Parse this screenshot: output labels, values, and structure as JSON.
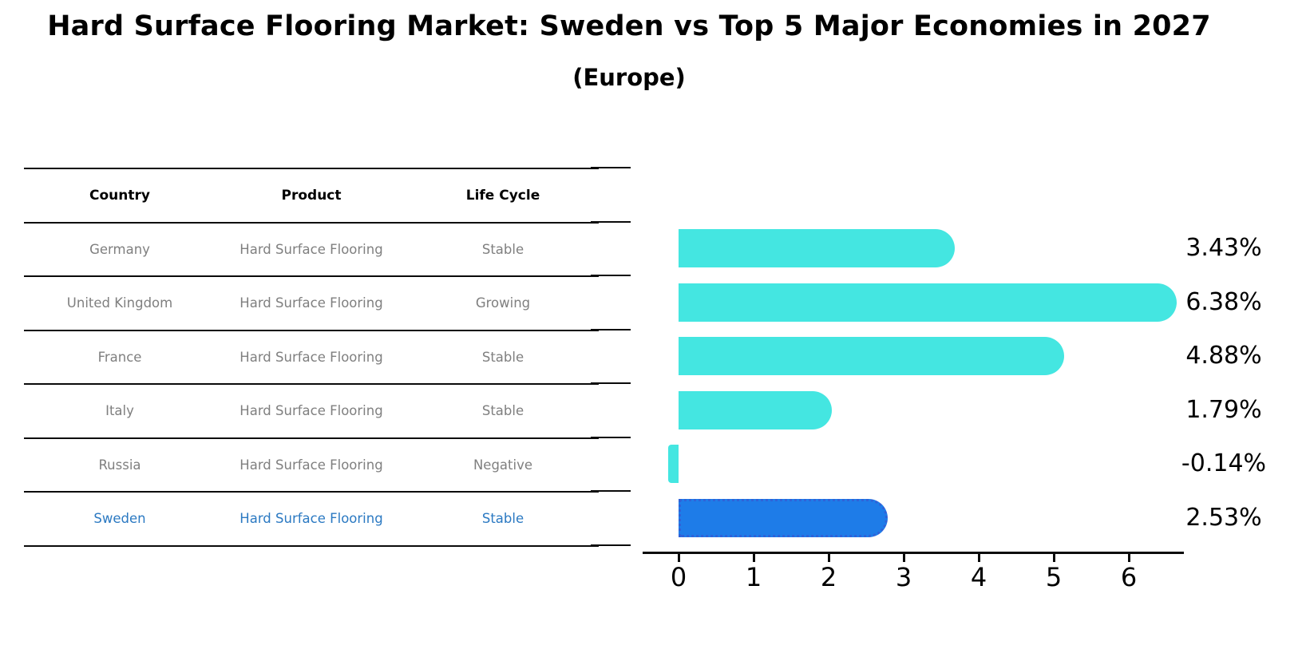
{
  "header": {
    "title": "Hard Surface Flooring Market: Sweden vs Top 5 Major Economies in 2027",
    "subtitle": "(Europe)"
  },
  "table": {
    "columns": [
      "Country",
      "Product",
      "Life Cycle"
    ],
    "rows": [
      {
        "country": "Germany",
        "product": "Hard Surface Flooring",
        "life_cycle": "Stable",
        "highlighted": false
      },
      {
        "country": "United Kingdom",
        "product": "Hard Surface Flooring",
        "life_cycle": "Growing",
        "highlighted": false
      },
      {
        "country": "France",
        "product": "Hard Surface Flooring",
        "life_cycle": "Stable",
        "highlighted": false
      },
      {
        "country": "Italy",
        "product": "Hard Surface Flooring",
        "life_cycle": "Stable",
        "highlighted": false
      },
      {
        "country": "Russia",
        "product": "Hard Surface Flooring",
        "life_cycle": "Negative",
        "highlighted": false
      },
      {
        "country": "Sweden",
        "product": "Hard Surface Flooring",
        "life_cycle": "Stable",
        "highlighted": true
      }
    ]
  },
  "chart_data": {
    "type": "bar",
    "orientation": "horizontal",
    "title": "Hard Surface Flooring Market: Sweden vs Top 5 Major Economies in 2027 (Europe)",
    "categories": [
      "Germany",
      "United Kingdom",
      "France",
      "Italy",
      "Russia",
      "Sweden"
    ],
    "values": [
      3.43,
      6.38,
      4.88,
      1.79,
      -0.14,
      2.53
    ],
    "value_labels": [
      "3.43%",
      "6.38%",
      "4.88%",
      "1.79%",
      "-0.14%",
      "2.53%"
    ],
    "x_ticks": [
      "0",
      "1",
      "2",
      "3",
      "4",
      "5",
      "6"
    ],
    "xlim": [
      -0.5,
      6.73
    ],
    "grid": false,
    "legend": "none",
    "highlight_index": 5,
    "bar_color": "#44e6e1",
    "highlight_color": "#1e7ce8",
    "highlight_border_color": "#2f62d8",
    "axis_color": "#0a0a0a"
  }
}
